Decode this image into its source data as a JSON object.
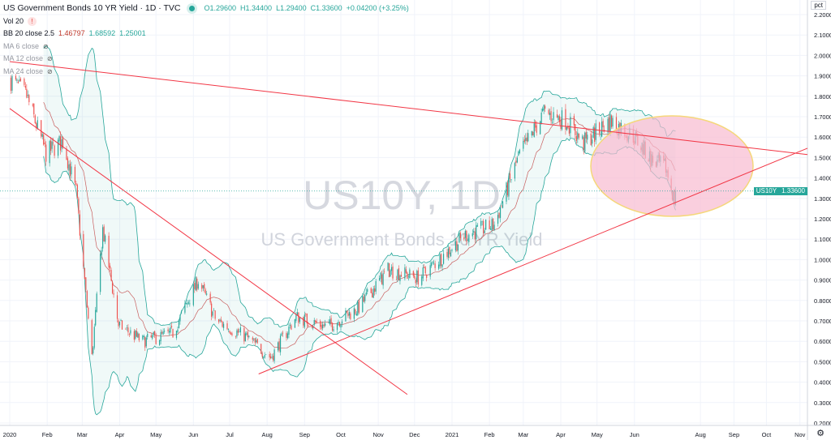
{
  "header": {
    "title": "US Government Bonds 10 YR Yield · 1D · TVC",
    "open": "O1.29600",
    "high": "H1.34400",
    "low": "L1.29400",
    "close": "C1.33600",
    "change": "+0.04200 (+3.25%)"
  },
  "indicators": {
    "vol": "Vol 20",
    "bb_label": "BB 20 close 2.5",
    "bb_mid": "1.46797",
    "bb_upper": "1.68592",
    "bb_lower": "1.25001",
    "ma6": "MA 6 close",
    "ma12": "MA 12 close",
    "ma24": "MA 24 close"
  },
  "axis": {
    "unit": "pct",
    "price_label_symbol": "US10Y",
    "price_label_value": "1.33600"
  },
  "watermark": {
    "symbol": "US10Y, 1D",
    "name": "US Government Bonds 10 YR Yield"
  },
  "colors": {
    "up": "#26a69a",
    "down": "#ef5350",
    "trend": "#f23645",
    "band": "#26a69a",
    "ellipse_fill": "#f8bbd0",
    "ellipse_stroke": "#f5d77a"
  },
  "chart_data": {
    "type": "candlestick",
    "ylim": [
      0.2,
      2.2
    ],
    "yticks": [
      "2.20000",
      "2.10000",
      "2.00000",
      "1.90000",
      "1.80000",
      "1.70000",
      "1.60000",
      "1.50000",
      "1.40000",
      "1.30000",
      "1.20000",
      "1.10000",
      "1.00000",
      "0.90000",
      "0.80000",
      "0.70000",
      "0.60000",
      "0.50000",
      "0.40000",
      "0.30000",
      "0.20000"
    ],
    "xticks": [
      [
        "2020",
        "2020-01-01"
      ],
      [
        "Feb",
        "2020-02-01"
      ],
      [
        "Mar",
        "2020-03-01"
      ],
      [
        "Apr",
        "2020-04-01"
      ],
      [
        "May",
        "2020-05-01"
      ],
      [
        "Jun",
        "2020-06-01"
      ],
      [
        "Jul",
        "2020-07-01"
      ],
      [
        "Aug",
        "2020-08-01"
      ],
      [
        "Sep",
        "2020-09-01"
      ],
      [
        "Oct",
        "2020-10-01"
      ],
      [
        "Nov",
        "2020-11-01"
      ],
      [
        "Dec",
        "2020-12-01"
      ],
      [
        "2021",
        "2021-01-01"
      ],
      [
        "Feb",
        "2021-02-01"
      ],
      [
        "Mar",
        "2021-03-01"
      ],
      [
        "Apr",
        "2021-04-01"
      ],
      [
        "May",
        "2021-05-01"
      ],
      [
        "Jun",
        "2021-06-01"
      ],
      [
        "Aug",
        "2021-08-01"
      ],
      [
        "Sep",
        "2021-09-01"
      ],
      [
        "Oct",
        "2021-10-01"
      ],
      [
        "Nov",
        "2021-11-01"
      ]
    ],
    "close_path": [
      [
        "2020-01-02",
        1.88
      ],
      [
        "2020-01-15",
        1.8
      ],
      [
        "2020-01-31",
        1.52
      ],
      [
        "2020-02-14",
        1.58
      ],
      [
        "2020-02-25",
        1.33
      ],
      [
        "2020-03-09",
        0.52
      ],
      [
        "2020-03-18",
        1.15
      ],
      [
        "2020-03-31",
        0.68
      ],
      [
        "2020-04-20",
        0.6
      ],
      [
        "2020-05-15",
        0.64
      ],
      [
        "2020-06-05",
        0.9
      ],
      [
        "2020-06-20",
        0.7
      ],
      [
        "2020-07-15",
        0.62
      ],
      [
        "2020-08-04",
        0.52
      ],
      [
        "2020-08-25",
        0.72
      ],
      [
        "2020-09-20",
        0.67
      ],
      [
        "2020-10-15",
        0.76
      ],
      [
        "2020-11-09",
        0.95
      ],
      [
        "2020-12-05",
        0.91
      ],
      [
        "2021-01-12",
        1.12
      ],
      [
        "2021-02-05",
        1.17
      ],
      [
        "2021-02-25",
        1.5
      ],
      [
        "2021-03-18",
        1.72
      ],
      [
        "2021-04-06",
        1.68
      ],
      [
        "2021-04-20",
        1.57
      ],
      [
        "2021-05-12",
        1.68
      ],
      [
        "2021-06-01",
        1.6
      ],
      [
        "2021-06-18",
        1.48
      ],
      [
        "2021-06-30",
        1.45
      ],
      [
        "2021-07-08",
        1.29
      ],
      [
        "2021-07-09",
        1.336
      ]
    ],
    "bollinger": {
      "period": 20,
      "mult": 2.5
    },
    "trendlines": [
      [
        [
          "2020-01-01",
          1.97
        ],
        [
          "2021-11-15",
          1.51
        ]
      ],
      [
        [
          "2020-01-01",
          1.74
        ],
        [
          "2020-11-25",
          0.34
        ]
      ],
      [
        [
          "2020-07-25",
          0.44
        ],
        [
          "2021-11-10",
          1.55
        ]
      ]
    ]
  }
}
